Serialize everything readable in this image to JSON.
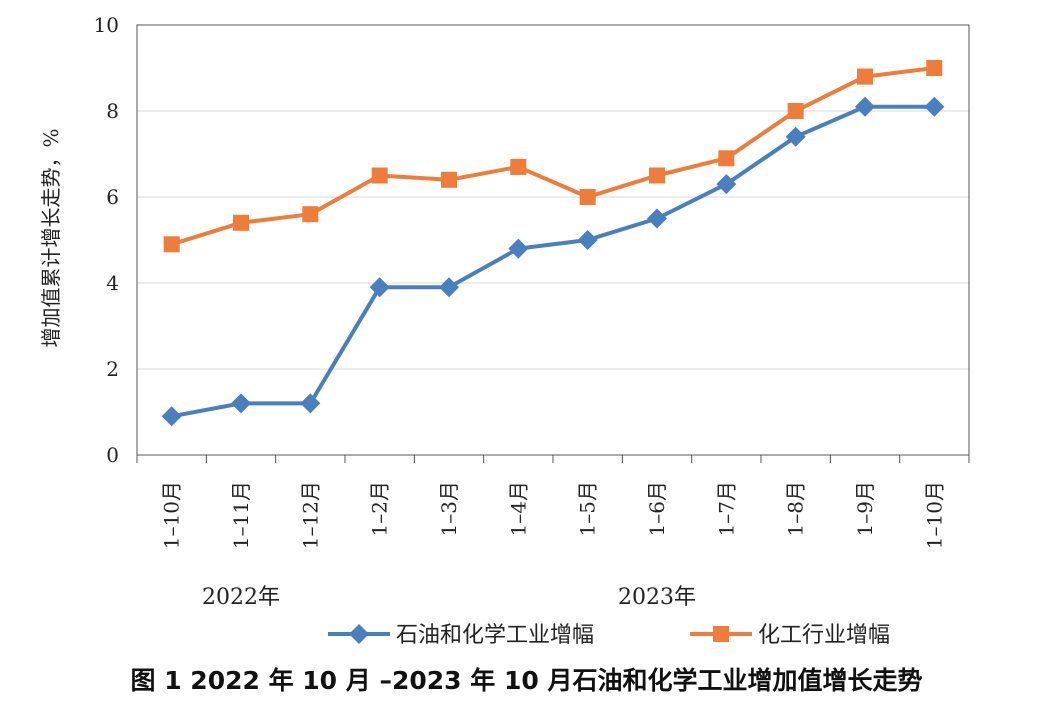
{
  "chart_data": {
    "type": "line",
    "ylabel": "增加值累计增长走势，%",
    "ylim": [
      0,
      10
    ],
    "yticks": [
      "0",
      "2",
      "4",
      "6",
      "8",
      "10"
    ],
    "categories": [
      "1–10月",
      "1–11月",
      "1–12月",
      "1–2月",
      "1–3月",
      "1–4月",
      "1–5月",
      "1–6月",
      "1–7月",
      "1–8月",
      "1–9月",
      "1–10月"
    ],
    "year_labels": [
      {
        "label": "2022年",
        "span": [
          0,
          2
        ]
      },
      {
        "label": "2023年",
        "span": [
          3,
          11
        ]
      }
    ],
    "series": [
      {
        "name": "石油和化学工业增幅",
        "color": "#4a7fbd",
        "marker": "diamond",
        "values": [
          0.9,
          1.2,
          1.2,
          3.9,
          3.9,
          4.8,
          5.0,
          5.5,
          6.3,
          7.4,
          8.1,
          8.1
        ]
      },
      {
        "name": "化工行业增幅",
        "color": "#ee7c3a",
        "marker": "square",
        "values": [
          4.9,
          5.4,
          5.6,
          6.5,
          6.4,
          6.7,
          6.0,
          6.5,
          6.9,
          8.0,
          8.8,
          9.0
        ]
      }
    ],
    "grid": true,
    "legend": "bottom"
  },
  "caption": "图 1  2022 年 10 月 –2023 年 10 月石油和化学工业增加值增长走势"
}
